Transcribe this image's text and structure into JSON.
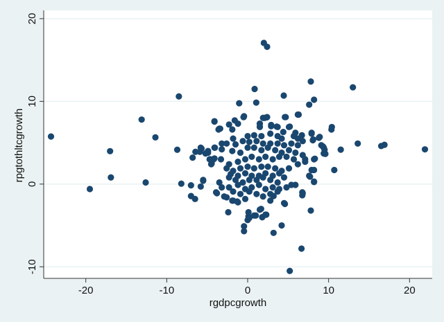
{
  "chart_data": {
    "type": "scatter",
    "title": "",
    "xlabel": "rgdpcgrowth",
    "ylabel": "rpgtothltcgrowth",
    "xlim": [
      -25.2,
      22.8
    ],
    "ylim": [
      -11.4,
      21
    ],
    "xticks": [
      -20,
      -10,
      0,
      10,
      20
    ],
    "yticks": [
      -10,
      0,
      10,
      20
    ],
    "grid": true,
    "colors": {
      "marker": "#1a476f",
      "background": "#eaf2f3",
      "plot_area": "#ffffff",
      "grid": "#eaf2f3"
    },
    "points": [
      [
        -24.3,
        5.75
      ],
      [
        -19.5,
        -0.6
      ],
      [
        -17.0,
        3.98
      ],
      [
        -16.9,
        0.8
      ],
      [
        -13.1,
        7.8
      ],
      [
        -11.4,
        5.65
      ],
      [
        -12.6,
        0.2
      ],
      [
        -8.5,
        10.6
      ],
      [
        -8.7,
        4.15
      ],
      [
        -8.2,
        0.05
      ],
      [
        -6.8,
        3.2
      ],
      [
        -7.0,
        -0.15
      ],
      [
        -7.0,
        -1.45
      ],
      [
        -6.5,
        -1.8
      ],
      [
        -6.45,
        3.9
      ],
      [
        -5.8,
        -0.3
      ],
      [
        -5.5,
        0.4
      ],
      [
        -5.7,
        4.3
      ],
      [
        -5.9,
        3.9
      ],
      [
        -5.2,
        3.7
      ],
      [
        -4.9,
        4.0
      ],
      [
        -4.7,
        3.0
      ],
      [
        -4.45,
        2.5
      ],
      [
        -4.1,
        3.1
      ],
      [
        -4.05,
        4.4
      ],
      [
        -4.1,
        7.55
      ],
      [
        -3.9,
        -1.0
      ],
      [
        -3.6,
        6.6
      ],
      [
        -3.4,
        6.7
      ],
      [
        2.0,
        17.07
      ],
      [
        2.4,
        16.6
      ],
      [
        0.86,
        11.5
      ],
      [
        4.46,
        10.7
      ],
      [
        7.8,
        12.4
      ],
      [
        13.0,
        11.7
      ],
      [
        -1.05,
        9.77
      ],
      [
        1.06,
        9.85
      ],
      [
        7.6,
        9.6
      ],
      [
        8.2,
        10.2
      ],
      [
        4.6,
        8.1
      ],
      [
        6.3,
        8.4
      ],
      [
        -0.45,
        8.2
      ],
      [
        10.4,
        6.9
      ],
      [
        10.35,
        6.6
      ],
      [
        8.9,
        5.7
      ],
      [
        7.9,
        6.1
      ],
      [
        8.05,
        5.3
      ],
      [
        9.3,
        4.55
      ],
      [
        9.5,
        4.15
      ],
      [
        9.6,
        3.65
      ],
      [
        11.5,
        4.16
      ],
      [
        13.6,
        4.9
      ],
      [
        16.5,
        4.6
      ],
      [
        16.9,
        4.75
      ],
      [
        21.9,
        4.2
      ],
      [
        10.7,
        1.7
      ],
      [
        8.3,
        3.07
      ],
      [
        8.2,
        1.7
      ],
      [
        7.6,
        1.0
      ],
      [
        8.2,
        0.25
      ],
      [
        6.75,
        -1.0
      ],
      [
        6.75,
        -1.35
      ],
      [
        7.8,
        -3.2
      ],
      [
        4.6,
        -2.4
      ],
      [
        4.2,
        -5.0
      ],
      [
        3.2,
        -5.9
      ],
      [
        6.65,
        -7.8
      ],
      [
        5.2,
        -10.5
      ],
      [
        -0.45,
        -5.1
      ],
      [
        -0.45,
        -5.7
      ],
      [
        0.1,
        -3.9
      ],
      [
        0.0,
        -4.35
      ],
      [
        1.0,
        -3.8
      ],
      [
        1.66,
        -3.0
      ],
      [
        1.8,
        -4.0
      ],
      [
        2.3,
        -3.7
      ],
      [
        -2.4,
        -3.4
      ],
      [
        3.2,
        -1.45
      ],
      [
        -1.3,
        -2.1
      ],
      [
        -1.9,
        -2.0
      ],
      [
        -0.5,
        8.1
      ],
      [
        2.1,
        8.0
      ],
      [
        2.35,
        8.07
      ],
      [
        1.5,
        7.3
      ],
      [
        1.5,
        6.95
      ],
      [
        2.9,
        7.15
      ],
      [
        3.6,
        6.95
      ],
      [
        5.2,
        6.95
      ],
      [
        -4.1,
        7.6
      ],
      [
        -1.6,
        7.7
      ],
      [
        -0.5,
        8.1
      ],
      [
        1.9,
        8.0
      ],
      [
        2.4,
        8.1
      ],
      [
        4.7,
        8.1
      ],
      [
        6.2,
        8.4
      ],
      [
        -3.5,
        6.7
      ],
      [
        -2.3,
        7.2
      ],
      [
        -1.2,
        7.3
      ],
      [
        -1.9,
        6.6
      ],
      [
        1.5,
        7.3
      ],
      [
        1.5,
        6.9
      ],
      [
        2.9,
        7.0
      ],
      [
        3.7,
        6.9
      ],
      [
        5.1,
        6.9
      ],
      [
        4.4,
        6.3
      ],
      [
        5.9,
        6.2
      ],
      [
        6.7,
        5.9
      ],
      [
        7.9,
        6.2
      ],
      [
        8.8,
        5.6
      ],
      [
        8.1,
        5.4
      ],
      [
        0.0,
        5.8
      ],
      [
        0.8,
        5.9
      ],
      [
        1.7,
        5.8
      ],
      [
        2.8,
        6.1
      ],
      [
        3.7,
        5.8
      ],
      [
        4.2,
        5.5
      ],
      [
        5.7,
        5.8
      ],
      [
        6.2,
        5.5
      ],
      [
        -3.2,
        4.9
      ],
      [
        -2.6,
        4.9
      ],
      [
        -1.8,
        5.5
      ],
      [
        -1.5,
        4.8
      ],
      [
        -0.6,
        5.2
      ],
      [
        0.2,
        5.1
      ],
      [
        1.1,
        5.2
      ],
      [
        1.9,
        4.9
      ],
      [
        2.8,
        4.9
      ],
      [
        3.7,
        4.9
      ],
      [
        4.5,
        4.7
      ],
      [
        5.4,
        4.9
      ],
      [
        6.2,
        4.7
      ],
      [
        6.8,
        5.2
      ],
      [
        -5.8,
        4.4
      ],
      [
        -4.9,
        3.8
      ],
      [
        -4.1,
        4.4
      ],
      [
        -3.2,
        4.2
      ],
      [
        -1.9,
        4.0
      ],
      [
        -0.9,
        3.8
      ],
      [
        0.0,
        4.4
      ],
      [
        0.8,
        4.4
      ],
      [
        1.7,
        4.1
      ],
      [
        2.5,
        4.4
      ],
      [
        3.4,
        4.1
      ],
      [
        4.2,
        3.8
      ],
      [
        5.1,
        4.1
      ],
      [
        5.9,
        3.8
      ],
      [
        6.8,
        3.5
      ],
      [
        9.1,
        4.7
      ],
      [
        9.4,
        4.4
      ],
      [
        9.4,
        3.7
      ],
      [
        -4.6,
        3.0
      ],
      [
        -4.2,
        3.0
      ],
      [
        -3.3,
        3.0
      ],
      [
        -4.5,
        2.4
      ],
      [
        -2.3,
        2.4
      ],
      [
        -1.2,
        2.7
      ],
      [
        -0.3,
        3.0
      ],
      [
        0.5,
        3.3
      ],
      [
        1.4,
        3.0
      ],
      [
        2.2,
        3.3
      ],
      [
        3.1,
        3.0
      ],
      [
        3.9,
        3.3
      ],
      [
        4.8,
        3.3
      ],
      [
        5.7,
        3.0
      ],
      [
        7.1,
        3.0
      ],
      [
        8.2,
        3.0
      ],
      [
        -2.6,
        1.9
      ],
      [
        -1.8,
        1.6
      ],
      [
        -0.9,
        1.9
      ],
      [
        0.0,
        2.1
      ],
      [
        0.8,
        1.9
      ],
      [
        1.7,
        2.1
      ],
      [
        2.5,
        2.1
      ],
      [
        3.4,
        1.9
      ],
      [
        4.2,
        1.6
      ],
      [
        5.1,
        1.9
      ],
      [
        6.2,
        2.4
      ],
      [
        7.1,
        2.7
      ],
      [
        -2.1,
        1.2
      ],
      [
        -1.2,
        1.0
      ],
      [
        -0.3,
        1.3
      ],
      [
        0.5,
        1.0
      ],
      [
        1.4,
        1.0
      ],
      [
        2.2,
        1.3
      ],
      [
        3.1,
        1.0
      ],
      [
        3.9,
        1.3
      ],
      [
        4.5,
        0.8
      ],
      [
        7.9,
        1.7
      ],
      [
        7.7,
        0.9
      ],
      [
        -5.5,
        0.5
      ],
      [
        -3.5,
        0.2
      ],
      [
        -2.3,
        0.8
      ],
      [
        -1.5,
        0.5
      ],
      [
        -0.6,
        0.2
      ],
      [
        0.2,
        0.5
      ],
      [
        1.1,
        0.5
      ],
      [
        1.9,
        0.8
      ],
      [
        2.8,
        0.5
      ],
      [
        3.7,
        0.2
      ],
      [
        5.4,
        -0.1
      ],
      [
        5.9,
        -0.1
      ],
      [
        8.2,
        0.3
      ],
      [
        -3.2,
        -0.4
      ],
      [
        -2.3,
        -0.4
      ],
      [
        -1.2,
        -0.1
      ],
      [
        -0.3,
        -0.6
      ],
      [
        0.5,
        -0.4
      ],
      [
        1.4,
        -0.1
      ],
      [
        2.2,
        -0.6
      ],
      [
        3.1,
        -0.4
      ],
      [
        3.9,
        -0.6
      ],
      [
        4.8,
        -0.4
      ],
      [
        6.8,
        -1.1
      ],
      [
        -3.8,
        -1.1
      ],
      [
        -2.9,
        -1.5
      ],
      [
        -1.8,
        -0.9
      ],
      [
        -0.9,
        -1.2
      ],
      [
        0.2,
        -0.9
      ],
      [
        1.1,
        -1.2
      ],
      [
        1.9,
        -1.5
      ],
      [
        2.8,
        -1.2
      ],
      [
        3.7,
        -0.9
      ],
      [
        -2.6,
        -1.6
      ],
      [
        -1.8,
        -2.0
      ],
      [
        -1.2,
        -2.2
      ],
      [
        -0.3,
        -1.8
      ],
      [
        2.8,
        -2.0
      ],
      [
        4.5,
        -2.3
      ],
      [
        0.1,
        -3.4
      ],
      [
        1.5,
        -3.1
      ],
      [
        2.2,
        -3.7
      ],
      [
        1.8,
        -4.0
      ],
      [
        0.8,
        -3.8
      ],
      [
        0.2,
        -4.1
      ]
    ]
  }
}
